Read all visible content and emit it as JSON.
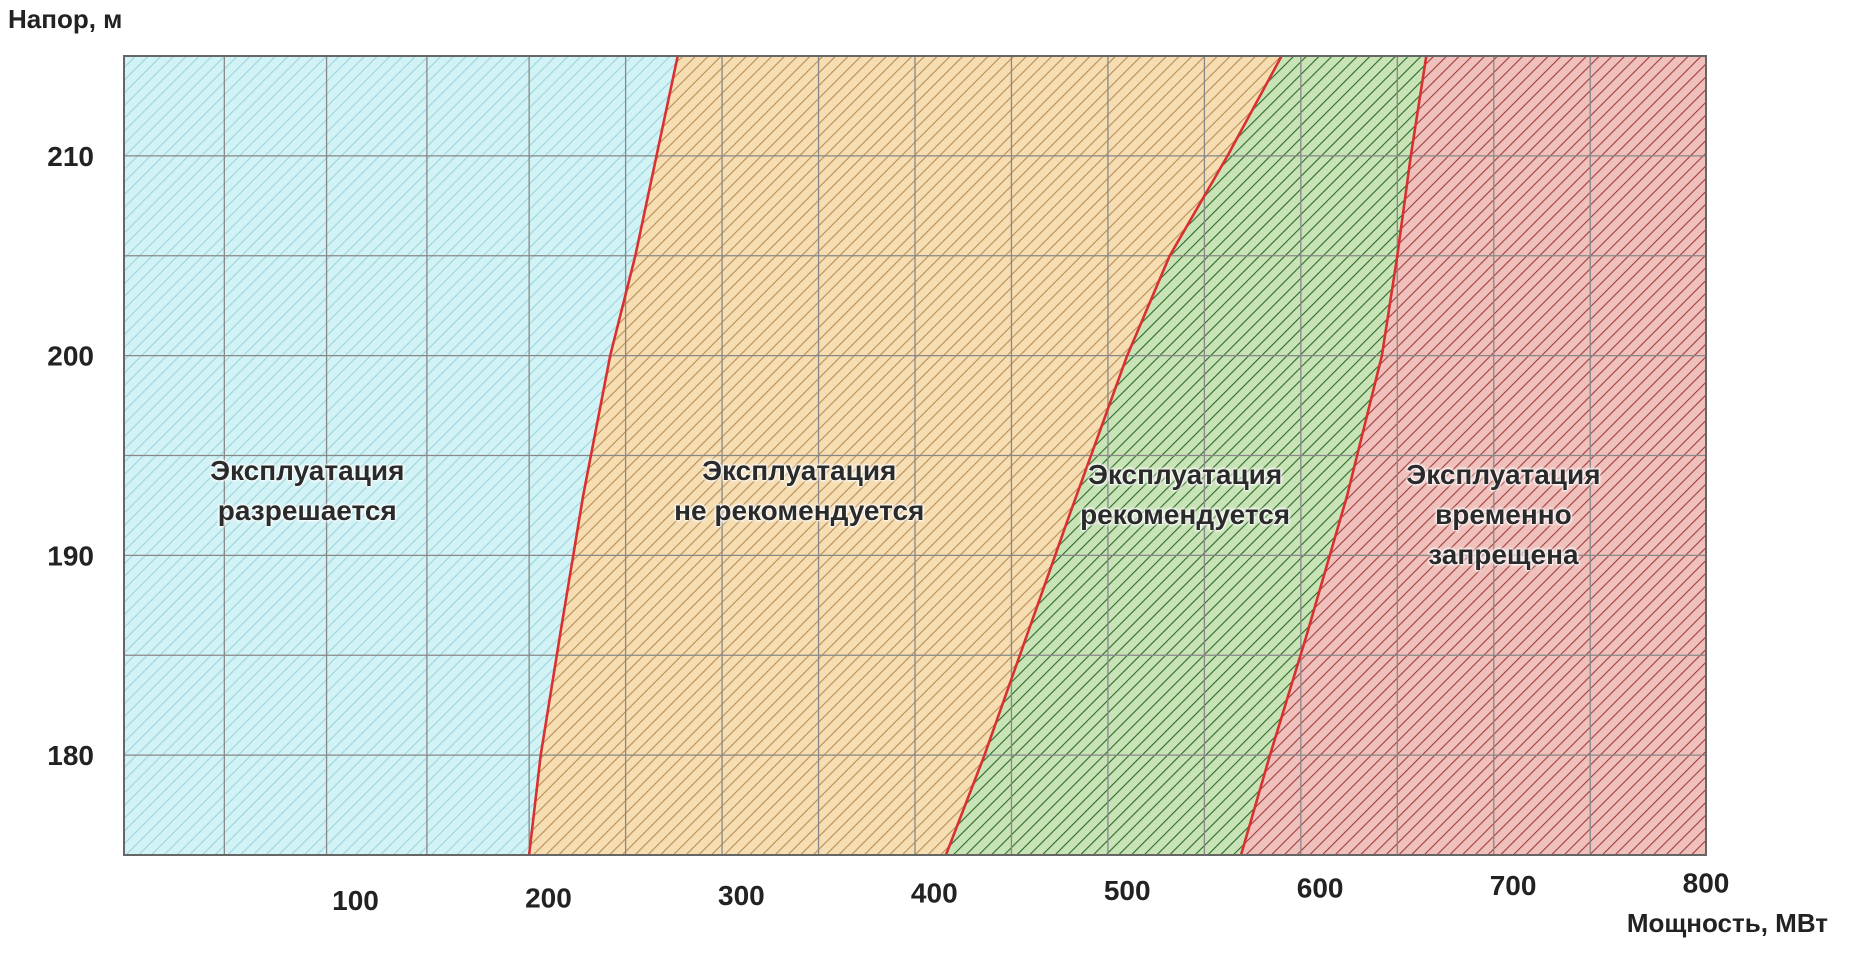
{
  "chart_data": {
    "type": "area",
    "title": "",
    "xlabel": "Мощность, МВт",
    "ylabel": "Напор, м",
    "xlim": [
      -20,
      800
    ],
    "ylim": [
      175,
      215
    ],
    "x_ticks": [
      100,
      200,
      300,
      400,
      500,
      600,
      700,
      800
    ],
    "y_ticks": [
      180,
      190,
      200,
      210
    ],
    "grid": true,
    "x_grid_values": [
      32,
      85,
      137,
      190,
      240,
      290,
      340,
      390,
      440,
      490,
      540,
      590,
      640,
      690,
      740,
      800
    ],
    "y_grid_step": 5,
    "boundaries": [
      {
        "points": [
          [
            190,
            175
          ],
          [
            196,
            180
          ],
          [
            206,
            186
          ],
          [
            218,
            193
          ],
          [
            232,
            200
          ],
          [
            245,
            205
          ],
          [
            256,
            210
          ],
          [
            267,
            215
          ]
        ]
      },
      {
        "points": [
          [
            406,
            175
          ],
          [
            426,
            180
          ],
          [
            448,
            186
          ],
          [
            470,
            192
          ],
          [
            500,
            200
          ],
          [
            522,
            205
          ],
          [
            552,
            210
          ],
          [
            580,
            215
          ]
        ]
      },
      {
        "points": [
          [
            559,
            175
          ],
          [
            574,
            180
          ],
          [
            593,
            186
          ],
          [
            614,
            193
          ],
          [
            632,
            200
          ],
          [
            640,
            205
          ],
          [
            647,
            210
          ],
          [
            655,
            215
          ]
        ]
      }
    ],
    "regions": [
      {
        "lines": [
          "Эксплуатация",
          "разрешается"
        ],
        "fill": "#d2f3f6",
        "hatch": "#9ed3de",
        "label_x": 75,
        "label_y": 194.2
      },
      {
        "lines": [
          "Эксплуатация",
          "не рекомендуется"
        ],
        "fill": "#f6ddb2",
        "hatch": "#b78f55",
        "label_x": 330,
        "label_y": 194.2
      },
      {
        "lines": [
          "Эксплуатация",
          "рекомендуется"
        ],
        "fill": "#c8e3b6",
        "hatch": "#2e6a2a",
        "label_x": 530,
        "label_y": 194.0
      },
      {
        "lines": [
          "Эксплуатация",
          "временно",
          "запрещена"
        ],
        "fill": "#efc0bc",
        "hatch": "#a13e3b",
        "label_x": 695,
        "label_y": 194.0
      }
    ],
    "boundary_color": "#d93030",
    "grid_color": "#888888"
  }
}
